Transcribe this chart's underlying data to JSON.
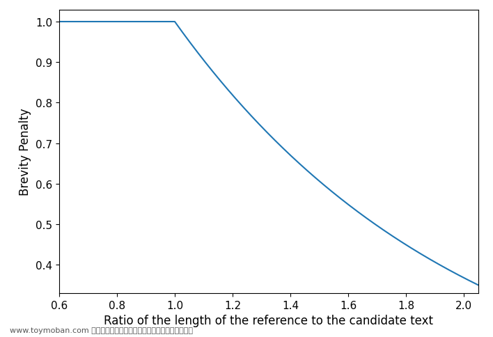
{
  "xlabel": "Ratio of the length of the reference to the candidate text",
  "ylabel": "Brevity Penalty",
  "line_color": "#1f77b4",
  "line_width": 1.5,
  "xlim": [
    0.6,
    2.05
  ],
  "ylim": [
    0.33,
    1.03
  ],
  "x_ticks": [
    0.6,
    0.8,
    1.0,
    1.2,
    1.4,
    1.6,
    1.8,
    2.0
  ],
  "y_ticks": [
    0.4,
    0.5,
    0.6,
    0.7,
    0.8,
    0.9,
    1.0
  ],
  "watermark": "www.toymoban.com 网络图片仅供展示，非存储，如有侵权联系删除。",
  "background_color": "#ffffff",
  "fig_width": 7.08,
  "fig_height": 4.85,
  "dpi": 100,
  "xlabel_fontsize": 12,
  "ylabel_fontsize": 12,
  "tick_fontsize": 11
}
